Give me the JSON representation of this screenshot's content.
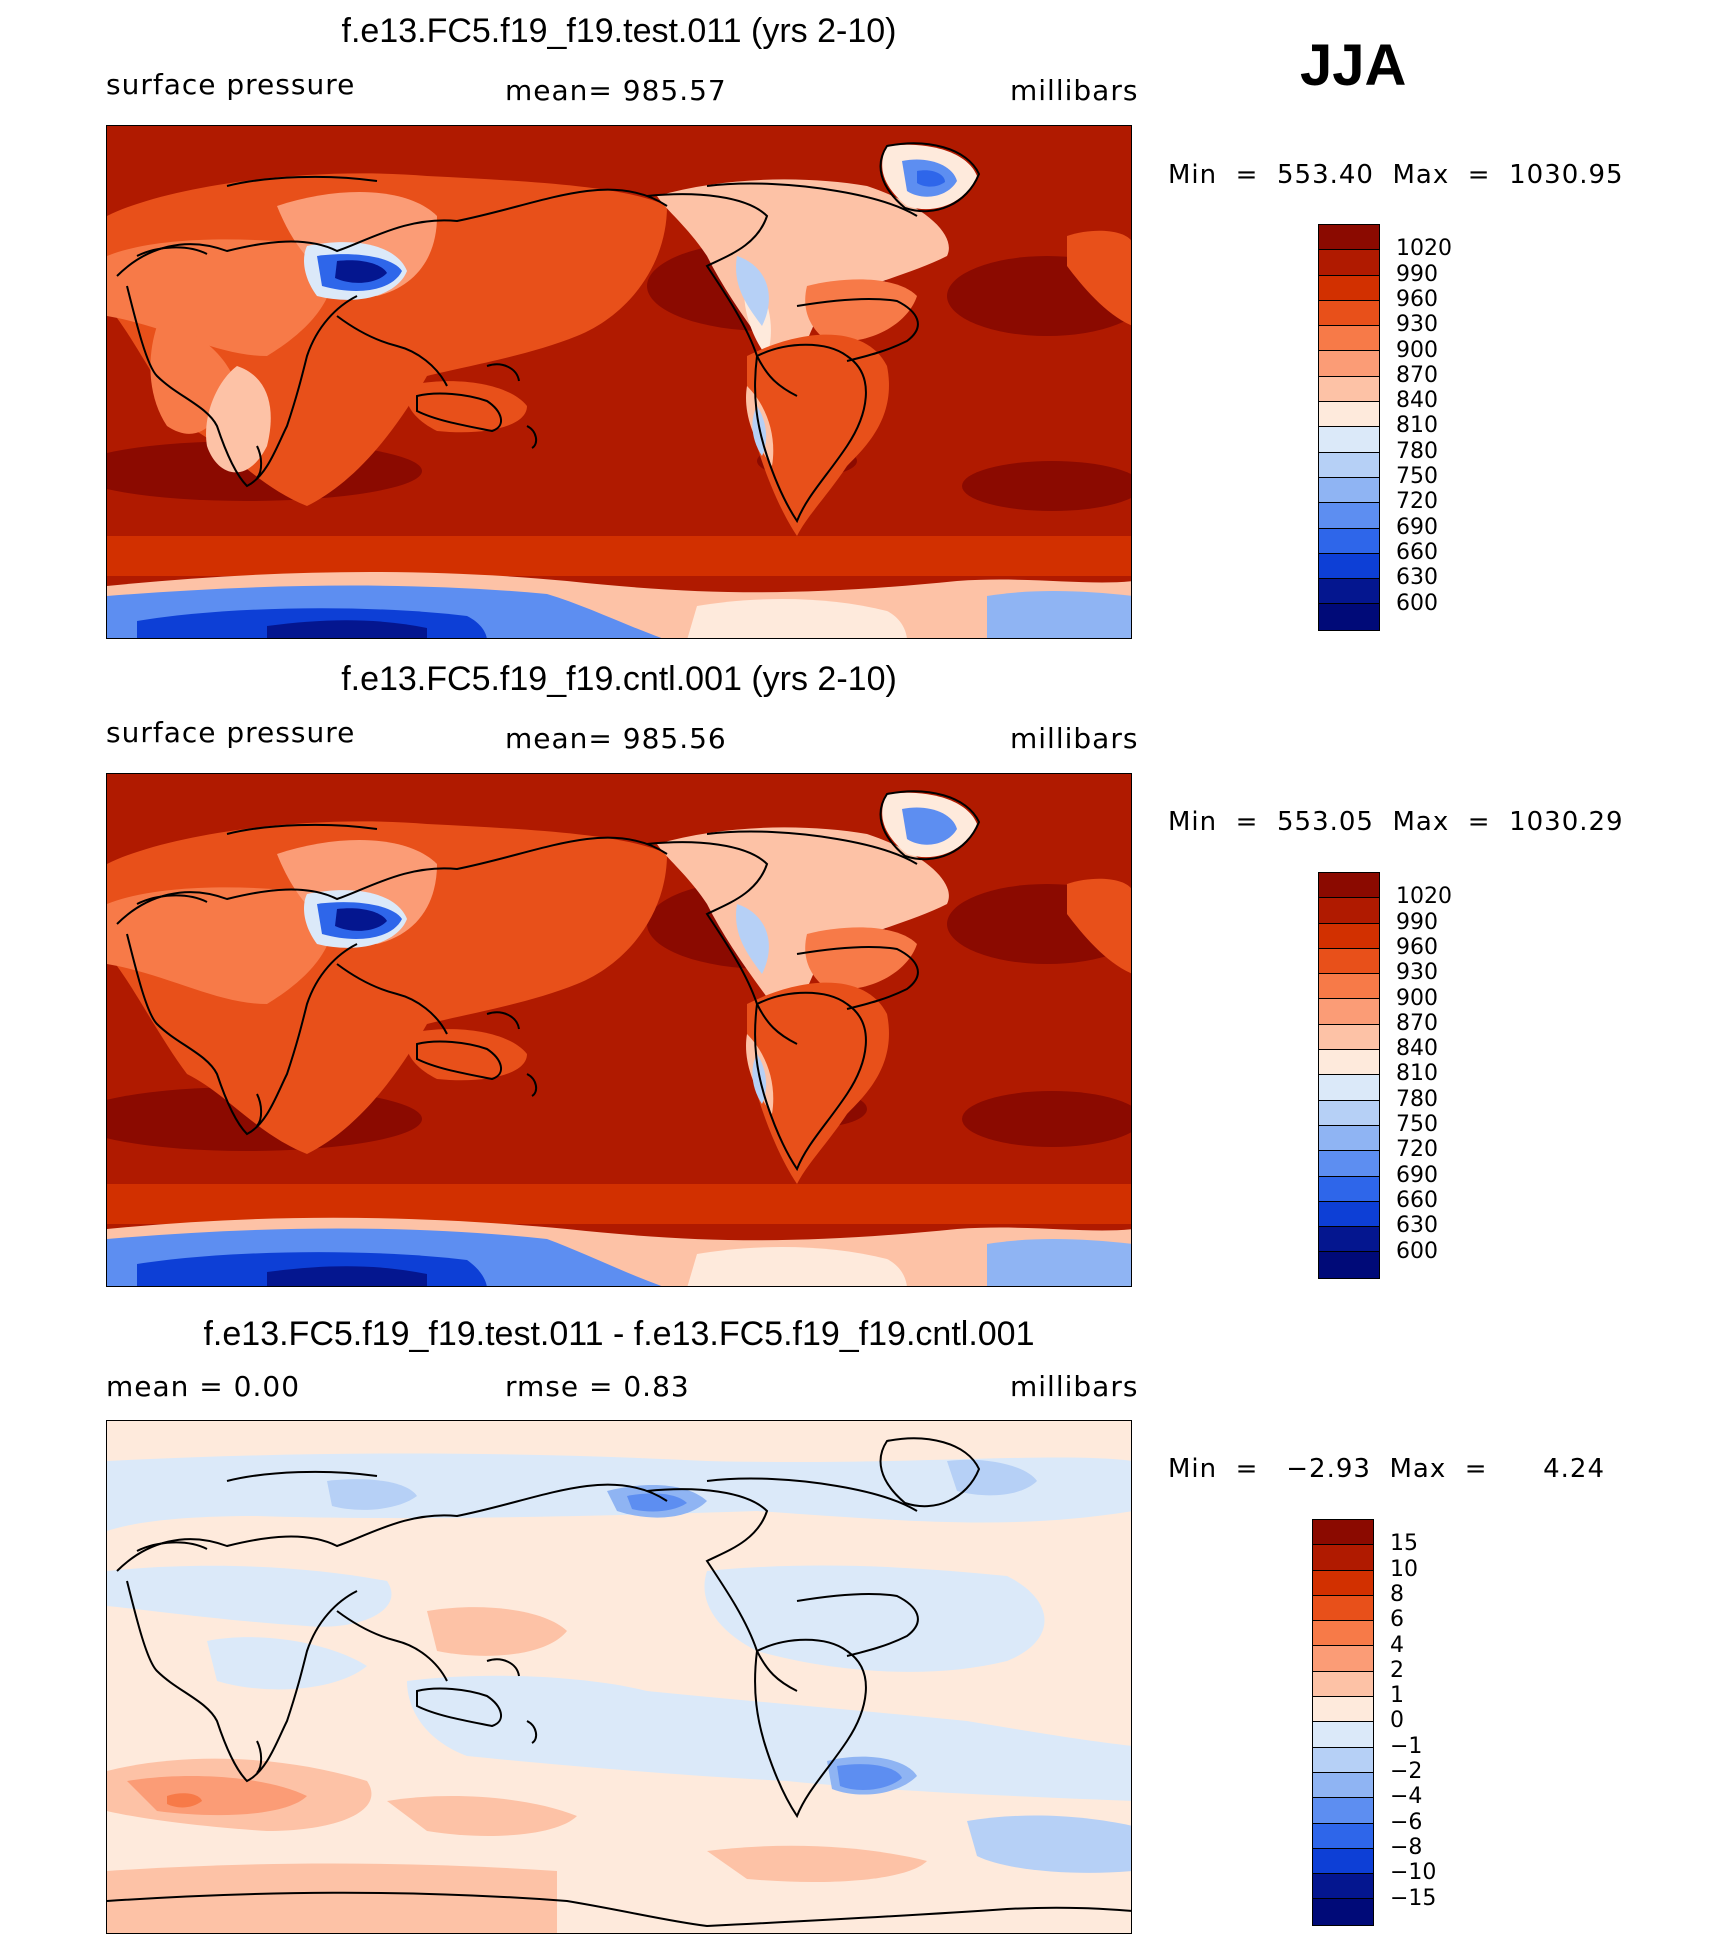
{
  "season": "JJA",
  "panels": [
    {
      "title": "f.e13.FC5.f19_f19.test.011 (yrs 2-10)",
      "left_label": "surface pressure",
      "center_label": "mean= 985.57",
      "right_label": "millibars",
      "minmax": "Min  =  553.40  Max  =  1030.95",
      "field": "pressure"
    },
    {
      "title": "f.e13.FC5.f19_f19.cntl.001 (yrs 2-10)",
      "left_label": "surface pressure",
      "center_label": "mean= 985.56",
      "right_label": "millibars",
      "minmax": "Min  =  553.05  Max  =  1030.29",
      "field": "pressure"
    },
    {
      "title": "f.e13.FC5.f19_f19.test.011 - f.e13.FC5.f19_f19.cntl.001",
      "left_label": "mean =     0.00",
      "center_label": "rmse =     0.83",
      "right_label": "millibars",
      "minmax": "Min  =   −2.93  Max  =      4.24",
      "field": "difference"
    }
  ],
  "colorbars": {
    "pressure": {
      "labels": [
        "1020",
        "990",
        "960",
        "930",
        "900",
        "870",
        "840",
        "810",
        "780",
        "750",
        "720",
        "690",
        "660",
        "630",
        "600"
      ],
      "colors": [
        "#8b0a00",
        "#b01a00",
        "#d23000",
        "#e8501a",
        "#f77a48",
        "#fb9c76",
        "#fdc2a6",
        "#feeadc",
        "#dbe9f9",
        "#b6d0f6",
        "#8fb4f3",
        "#5d8ef1",
        "#2e66ea",
        "#0d3fd6",
        "#04168f",
        "#000a78"
      ]
    },
    "difference": {
      "labels": [
        "15",
        "10",
        "8",
        "6",
        "4",
        "2",
        "1",
        "0",
        "−1",
        "−2",
        "−4",
        "−6",
        "−8",
        "−10",
        "−15"
      ],
      "colors": [
        "#8b0a00",
        "#b01a00",
        "#d23000",
        "#e8501a",
        "#f77a48",
        "#fb9c76",
        "#fdc2a6",
        "#feeadc",
        "#dbe9f9",
        "#b6d0f6",
        "#8fb4f3",
        "#5d8ef1",
        "#2e66ea",
        "#0d3fd6",
        "#04168f",
        "#000a78"
      ]
    }
  }
}
